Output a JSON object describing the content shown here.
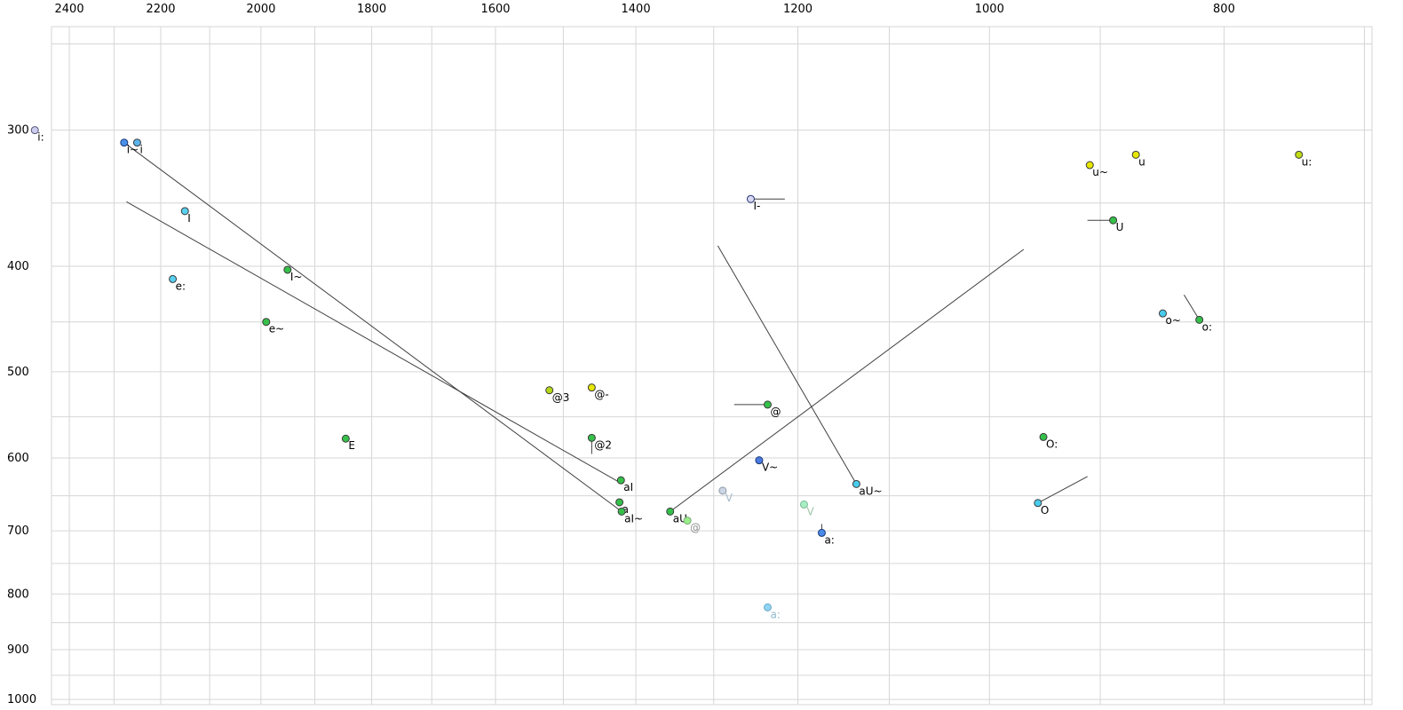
{
  "chart_data": {
    "type": "scatter",
    "title": "",
    "x_axis": {
      "scale": "log",
      "reversed": true,
      "range": [
        2441,
        695
      ],
      "ticks": [
        2400,
        2200,
        2000,
        1800,
        1600,
        1400,
        1200,
        1000,
        800
      ],
      "grid": {
        "min": 700,
        "max": 2400,
        "step": 100
      }
    },
    "y_axis": {
      "scale": "log",
      "increases_downward": true,
      "range": [
        241,
        1011
      ],
      "ticks": [
        300,
        400,
        500,
        600,
        700,
        800,
        900,
        1000
      ],
      "grid": {
        "min": 250,
        "max": 1000,
        "step": 50
      }
    },
    "style": {
      "background": "#ffffff",
      "grid_color": "#d6d6d6",
      "line_color": "#404040",
      "point_stroke": "#3a3a3a",
      "tick_label_color": "#000000",
      "point_label_color": "#000000"
    },
    "points": [
      {
        "label": "i:",
        "f2": 2480,
        "f1": 300,
        "fill": "#ccccee",
        "stroke": "#555577"
      },
      {
        "label": "i~",
        "f2": 2278,
        "f1": 308,
        "fill": "#4a90e8",
        "stroke": "#1a3a77"
      },
      {
        "label": "i",
        "f2": 2250,
        "f1": 308,
        "fill": "#5ab4ec"
      },
      {
        "label": "I",
        "f2": 2150,
        "f1": 356,
        "fill": "#58d0f0"
      },
      {
        "label": "e:",
        "f2": 2175,
        "f1": 411,
        "fill": "#58d0f0"
      },
      {
        "label": "I~",
        "f2": 1950,
        "f1": 403,
        "fill": "#35c04a"
      },
      {
        "label": "e~",
        "f2": 1990,
        "f1": 450,
        "fill": "#35c04a"
      },
      {
        "label": "E",
        "f2": 1845,
        "f1": 576,
        "fill": "#35c04a"
      },
      {
        "label": "@3",
        "f2": 1520,
        "f1": 520,
        "fill": "#b4d818"
      },
      {
        "label": "@-",
        "f2": 1460,
        "f1": 517,
        "fill": "#e6e600"
      },
      {
        "label": "@2",
        "f2": 1460,
        "f1": 575,
        "fill": "#35c04a"
      },
      {
        "label": "aI",
        "f2": 1420,
        "f1": 629,
        "fill": "#35c04a"
      },
      {
        "label": "a",
        "f2": 1422,
        "f1": 659,
        "fill": "#35c04a"
      },
      {
        "label": "aI~",
        "f2": 1419,
        "f1": 672,
        "fill": "#35c04a"
      },
      {
        "label": "aU",
        "f2": 1355,
        "f1": 672,
        "fill": "#35c04a"
      },
      {
        "label": "@",
        "f2": 1333,
        "f1": 685,
        "fill": "#99ee88",
        "stroke": "#77aa77",
        "label_color": "#909090"
      },
      {
        "label": "V",
        "f2": 1289,
        "f1": 643,
        "fill": "#ccd6e4",
        "stroke": "#8a98a8",
        "label_color": "#a8b8c8"
      },
      {
        "label": "V~",
        "f2": 1245,
        "f1": 603,
        "fill": "#4a7ae0",
        "stroke": "#1a3a77"
      },
      {
        "label": "@",
        "f2": 1235,
        "f1": 536,
        "fill": "#35c04a"
      },
      {
        "label": "I-",
        "f2": 1255,
        "f1": 347,
        "fill": "#d8d8f0",
        "stroke": "#223377"
      },
      {
        "label": "V",
        "f2": 1193,
        "f1": 662,
        "fill": "#a8eec4",
        "stroke": "#7ab894",
        "label_color": "#a0c4a8"
      },
      {
        "label": "a:",
        "f2": 1173,
        "f1": 703,
        "fill": "#4a8ae8",
        "stroke": "#1a3a77"
      },
      {
        "label": "aU~",
        "f2": 1135,
        "f1": 634,
        "fill": "#48ccec"
      },
      {
        "label": "a:",
        "f2": 1235,
        "f1": 823,
        "fill": "#8fd4f0",
        "stroke": "#6aa8c8",
        "label_color": "#90b8cc"
      },
      {
        "label": "O:",
        "f2": 950,
        "f1": 574,
        "fill": "#35c04a"
      },
      {
        "label": "O",
        "f2": 955,
        "f1": 660,
        "fill": "#48ccec"
      },
      {
        "label": "o~",
        "f2": 848,
        "f1": 442,
        "fill": "#48ccec"
      },
      {
        "label": "o:",
        "f2": 819,
        "f1": 448,
        "fill": "#35c04a"
      },
      {
        "label": "u~",
        "f2": 909,
        "f1": 323,
        "fill": "#e6e600"
      },
      {
        "label": "u",
        "f2": 870,
        "f1": 316,
        "fill": "#e6e600"
      },
      {
        "label": "U",
        "f2": 889,
        "f1": 363,
        "fill": "#35c04a"
      },
      {
        "label": "u:",
        "f2": 745,
        "f1": 316,
        "fill": "#c0dc14"
      }
    ],
    "segments": [
      {
        "from": [
          2278,
          308
        ],
        "to": [
          1419,
          672
        ]
      },
      {
        "from": [
          2273,
          349
        ],
        "to": [
          1418,
          634
        ]
      },
      {
        "from": [
          1295,
          383
        ],
        "to": [
          1135,
          634
        ]
      },
      {
        "from": [
          1355,
          672
        ],
        "to": [
          968,
          386
        ]
      },
      {
        "from": [
          1255,
          347
        ],
        "to": [
          1215,
          347
        ]
      },
      {
        "from": [
          1235,
          536
        ],
        "to": [
          1275,
          536
        ]
      },
      {
        "from": [
          889,
          363
        ],
        "to": [
          911,
          363
        ]
      },
      {
        "from": [
          819,
          448
        ],
        "to": [
          831,
          425
        ]
      },
      {
        "from": [
          955,
          660
        ],
        "to": [
          911,
          624
        ]
      },
      {
        "from": [
          1460,
          575
        ],
        "to": [
          1460,
          595
        ]
      },
      {
        "from": [
          1173,
          703
        ],
        "to": [
          1173,
          690
        ]
      }
    ]
  }
}
